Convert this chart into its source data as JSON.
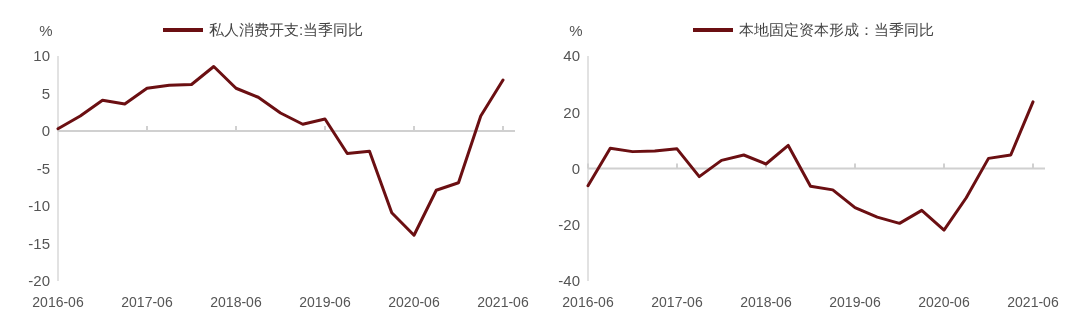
{
  "chart_data": [
    {
      "type": "line",
      "ylabel": "%",
      "categories": [
        "2016-06",
        null,
        null,
        null,
        "2017-06",
        null,
        null,
        null,
        "2018-06",
        null,
        null,
        null,
        "2019-06",
        null,
        null,
        null,
        "2020-06",
        null,
        null,
        null,
        "2021-06"
      ],
      "series": [
        {
          "name": "私人消费开支:当季同比",
          "color": "#6b0f12",
          "values": [
            0.3,
            2.0,
            4.1,
            3.6,
            5.7,
            6.1,
            6.2,
            8.6,
            5.7,
            4.5,
            2.4,
            0.9,
            1.6,
            -3.0,
            -2.7,
            -10.9,
            -13.9,
            -7.9,
            -6.9,
            2.0,
            6.8
          ]
        }
      ],
      "ylim": [
        -20,
        10
      ],
      "yticks": [
        -20,
        -15,
        -10,
        -5,
        0,
        5,
        10
      ],
      "legend": "top"
    },
    {
      "type": "line",
      "ylabel": "%",
      "categories": [
        "2016-06",
        null,
        null,
        null,
        "2017-06",
        null,
        null,
        null,
        "2018-06",
        null,
        null,
        null,
        "2019-06",
        null,
        null,
        null,
        "2020-06",
        null,
        null,
        null,
        "2021-06"
      ],
      "series": [
        {
          "name": "本地固定资本形成：当季同比",
          "color": "#6b0f12",
          "values": [
            -6.1,
            7.2,
            6.0,
            6.2,
            7.0,
            -2.9,
            2.9,
            4.8,
            1.6,
            8.2,
            -6.3,
            -7.6,
            -13.9,
            -17.3,
            -19.5,
            -14.9,
            -21.9,
            -10.4,
            3.6,
            4.8,
            23.7
          ]
        }
      ],
      "ylim": [
        -40,
        40
      ],
      "yticks": [
        -40,
        -20,
        0,
        20,
        40
      ],
      "legend": "top"
    }
  ]
}
